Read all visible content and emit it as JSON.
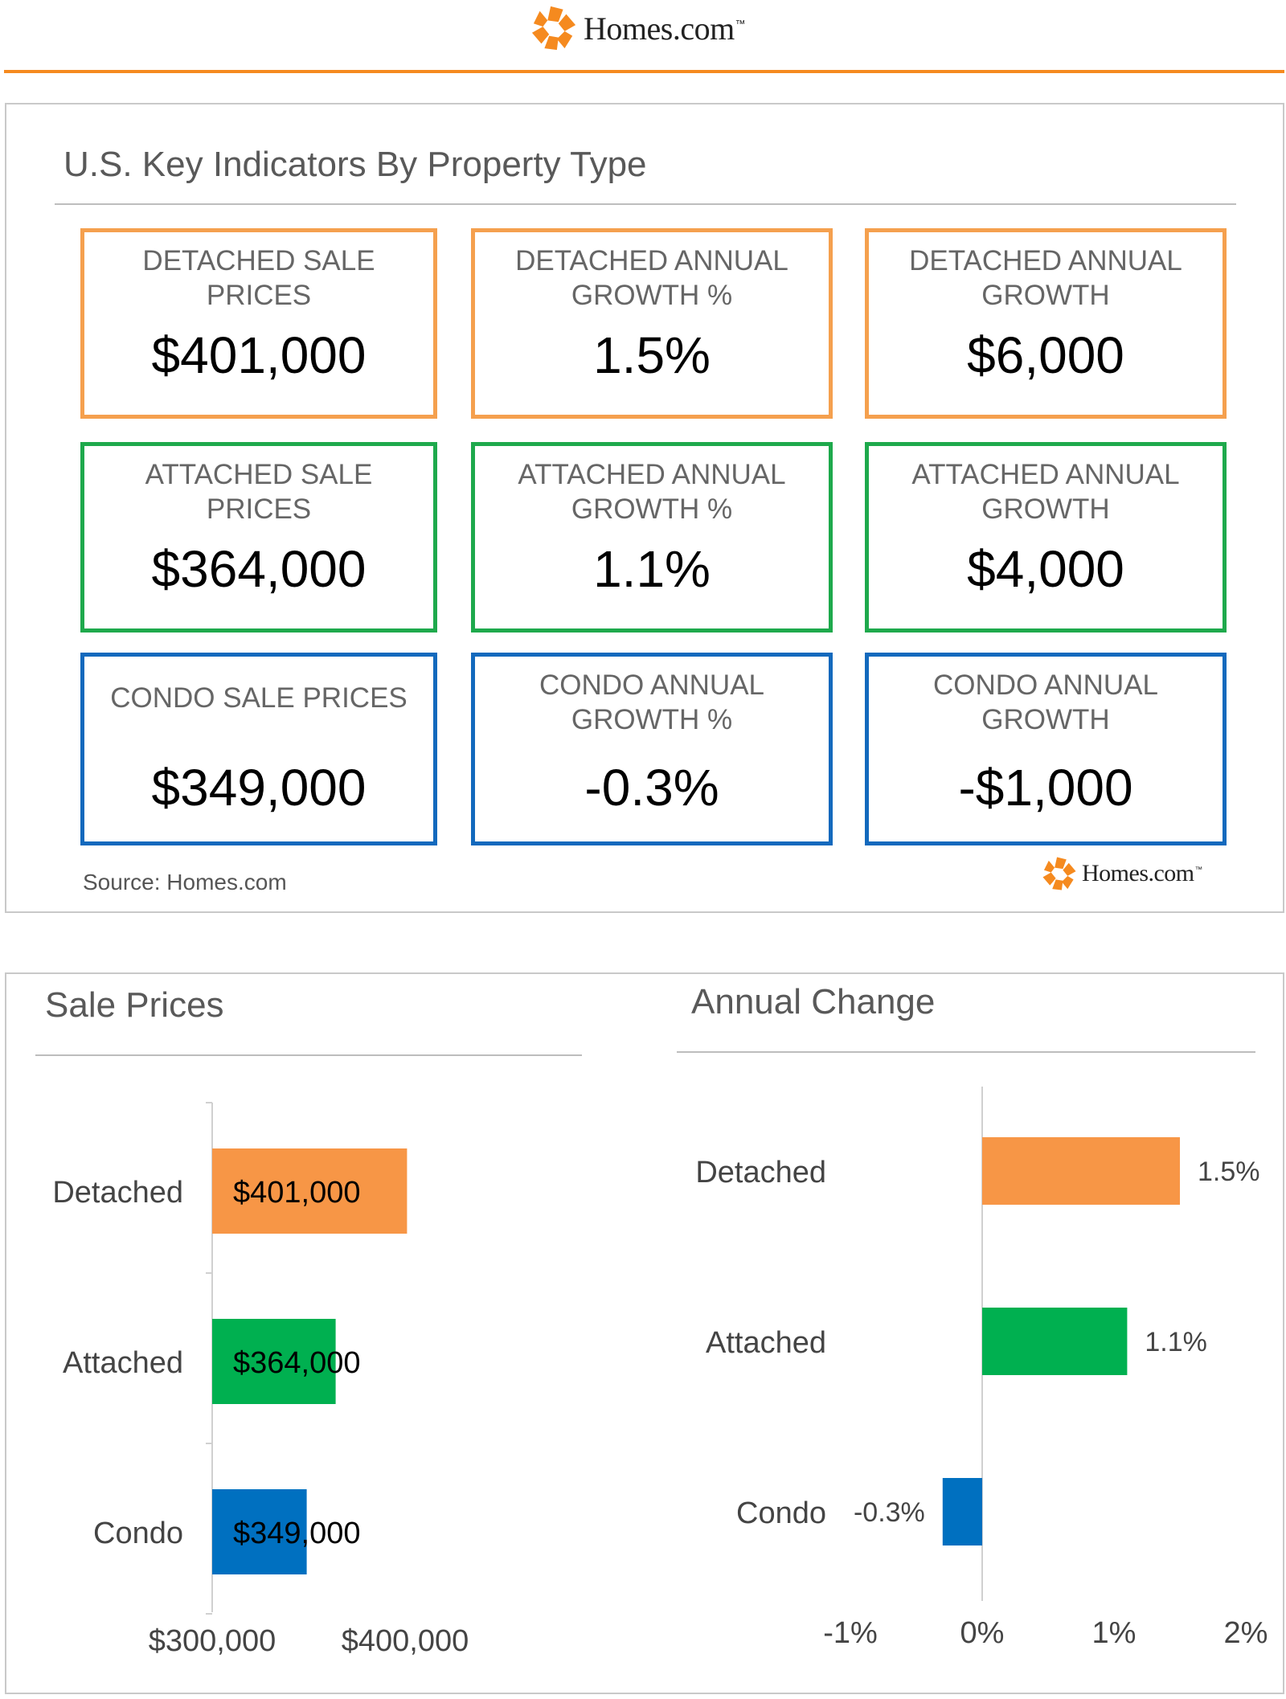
{
  "brand": {
    "name": "Homes.com",
    "tm": "™"
  },
  "indicators": {
    "title": "U.S. Key Indicators By Property Type",
    "source": "Source: Homes.com",
    "cards": [
      {
        "label": "DETACHED SALE\nPRICES",
        "value": "$401,000",
        "group": "detached"
      },
      {
        "label": "DETACHED ANNUAL\nGROWTH %",
        "value": "1.5%",
        "group": "detached"
      },
      {
        "label": "DETACHED ANNUAL\nGROWTH",
        "value": "$6,000",
        "group": "detached"
      },
      {
        "label": "ATTACHED SALE\nPRICES",
        "value": "$364,000",
        "group": "attached"
      },
      {
        "label": "ATTACHED ANNUAL\nGROWTH %",
        "value": "1.1%",
        "group": "attached"
      },
      {
        "label": "ATTACHED ANNUAL\nGROWTH",
        "value": "$4,000",
        "group": "attached"
      },
      {
        "label": "CONDO SALE PRICES",
        "value": "$349,000",
        "group": "condo"
      },
      {
        "label": "CONDO ANNUAL\nGROWTH %",
        "value": "-0.3%",
        "group": "condo"
      },
      {
        "label": "CONDO ANNUAL\nGROWTH",
        "value": "-$1,000",
        "group": "condo"
      }
    ]
  },
  "colors": {
    "detached": "#f79646",
    "attached": "#00b050",
    "condo": "#0070c0"
  },
  "chart_data": [
    {
      "type": "bar",
      "orientation": "horizontal",
      "title": "Sale Prices",
      "categories": [
        "Detached",
        "Attached",
        "Condo"
      ],
      "values": [
        401000,
        364000,
        349000
      ],
      "data_labels": [
        "$401,000",
        "$364,000",
        "$349,000"
      ],
      "xlim": [
        300000,
        400000
      ],
      "xticks": [
        300000,
        400000
      ],
      "xtick_labels": [
        "$300,000",
        "$400,000"
      ],
      "grid": false,
      "colors": [
        "#f79646",
        "#00b050",
        "#0070c0"
      ]
    },
    {
      "type": "bar",
      "orientation": "horizontal",
      "title": "Annual Change",
      "categories": [
        "Detached",
        "Attached",
        "Condo"
      ],
      "values": [
        1.5,
        1.1,
        -0.3
      ],
      "data_labels": [
        "1.5%",
        "1.1%",
        "-0.3%"
      ],
      "xlim": [
        -1,
        2
      ],
      "xticks": [
        -1,
        0,
        1,
        2
      ],
      "xtick_labels": [
        "-1%",
        "0%",
        "1%",
        "2%"
      ],
      "grid": false,
      "colors": [
        "#f79646",
        "#00b050",
        "#0070c0"
      ]
    }
  ]
}
